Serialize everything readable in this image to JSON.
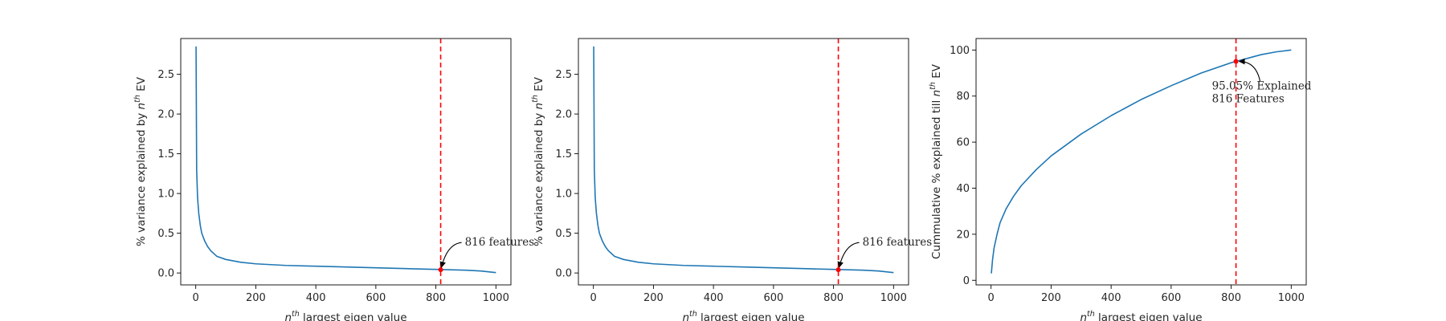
{
  "chart_data": [
    {
      "type": "line",
      "xlabel": "largest eigen value",
      "xlabel_prefix": "n",
      "xlabel_sup": "th",
      "ylabel": "% variance explained by",
      "ylabel_n": "n",
      "ylabel_sup": "th",
      "ylabel_suffix": "EV",
      "xlim": [
        -50,
        1050
      ],
      "ylim": [
        -0.15,
        2.95
      ],
      "xticks": [
        0,
        200,
        400,
        600,
        800,
        1000
      ],
      "yticks": [
        0.0,
        0.5,
        1.0,
        1.5,
        2.0,
        2.5
      ],
      "ytick_decimals": 1,
      "line_color": "#1f77b4",
      "marker_color": "#ff0000",
      "series": [
        {
          "x": [
            1,
            3,
            6,
            10,
            15,
            20,
            30,
            40,
            50,
            70,
            100,
            150,
            200,
            300,
            400,
            500,
            600,
            700,
            800,
            900,
            950,
            1000
          ],
          "y": [
            2.85,
            1.3,
            0.95,
            0.75,
            0.6,
            0.5,
            0.4,
            0.33,
            0.28,
            0.21,
            0.17,
            0.135,
            0.115,
            0.095,
            0.085,
            0.075,
            0.065,
            0.055,
            0.045,
            0.035,
            0.025,
            0.005
          ]
        }
      ],
      "vline": {
        "x": 816
      },
      "highlight_point": {
        "x": 816,
        "y": 0.04
      },
      "annotation": {
        "lines": [
          "816 features"
        ],
        "arrow_to": {
          "x": 816,
          "y": 0.04
        }
      }
    },
    {
      "type": "line",
      "xlabel": "largest eigen value",
      "xlabel_prefix": "n",
      "xlabel_sup": "th",
      "ylabel": "% variance explained by",
      "ylabel_n": "n",
      "ylabel_sup": "th",
      "ylabel_suffix": "EV",
      "xlim": [
        -50,
        1050
      ],
      "ylim": [
        -0.15,
        2.95
      ],
      "xticks": [
        0,
        200,
        400,
        600,
        800,
        1000
      ],
      "yticks": [
        0.0,
        0.5,
        1.0,
        1.5,
        2.0,
        2.5
      ],
      "ytick_decimals": 1,
      "line_color": "#1f77b4",
      "marker_color": "#ff0000",
      "series": [
        {
          "x": [
            1,
            3,
            6,
            10,
            15,
            20,
            30,
            40,
            50,
            70,
            100,
            150,
            200,
            300,
            400,
            500,
            600,
            700,
            800,
            900,
            950,
            1000
          ],
          "y": [
            2.85,
            1.3,
            0.95,
            0.75,
            0.6,
            0.5,
            0.4,
            0.33,
            0.28,
            0.21,
            0.17,
            0.135,
            0.115,
            0.095,
            0.085,
            0.075,
            0.065,
            0.055,
            0.045,
            0.035,
            0.025,
            0.005
          ]
        }
      ],
      "vline": {
        "x": 816
      },
      "highlight_point": {
        "x": 816,
        "y": 0.04
      },
      "annotation": {
        "lines": [
          "816 features"
        ],
        "arrow_to": {
          "x": 816,
          "y": 0.04
        }
      }
    },
    {
      "type": "line",
      "xlabel": "largest eigen value",
      "xlabel_prefix": "n",
      "xlabel_sup": "th",
      "ylabel": "Cummulative % explained till",
      "ylabel_n": "n",
      "ylabel_sup": "th",
      "ylabel_suffix": "EV",
      "xlim": [
        -50,
        1050
      ],
      "ylim": [
        -2,
        105
      ],
      "xticks": [
        0,
        200,
        400,
        600,
        800,
        1000
      ],
      "yticks": [
        0,
        20,
        40,
        60,
        80,
        100
      ],
      "ytick_decimals": 0,
      "line_color": "#1f77b4",
      "marker_color": "#ff0000",
      "series": [
        {
          "x": [
            1,
            5,
            10,
            20,
            30,
            50,
            75,
            100,
            150,
            200,
            300,
            400,
            500,
            600,
            700,
            800,
            816,
            900,
            950,
            1000
          ],
          "y": [
            3,
            9,
            14,
            20,
            25,
            31,
            36.5,
            41,
            48,
            54,
            63.5,
            71.5,
            78.5,
            84.5,
            90,
            94.5,
            95.05,
            98,
            99.2,
            100
          ]
        }
      ],
      "vline": {
        "x": 816
      },
      "highlight_point": {
        "x": 816,
        "y": 95.05
      },
      "annotation": {
        "lines": [
          "95.05% Explained",
          "816 Features"
        ],
        "arrow_to": {
          "x": 816,
          "y": 95.05
        }
      }
    }
  ]
}
